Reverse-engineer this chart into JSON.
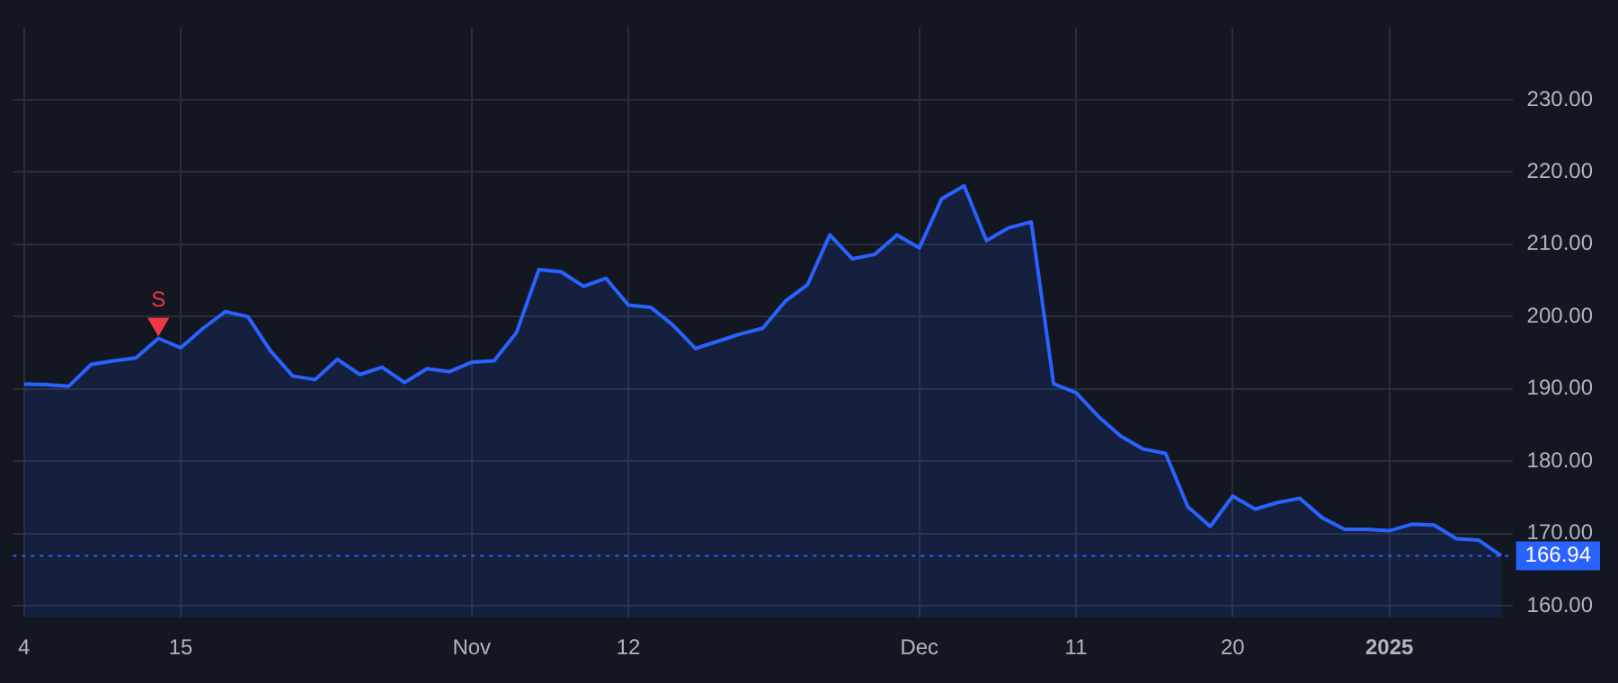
{
  "chart_data": {
    "type": "area",
    "categories": [
      "4",
      null,
      null,
      null,
      null,
      null,
      null,
      "15",
      null,
      null,
      null,
      null,
      null,
      null,
      null,
      null,
      null,
      null,
      null,
      null,
      "Nov",
      null,
      null,
      null,
      null,
      null,
      null,
      "12",
      null,
      null,
      null,
      null,
      null,
      null,
      null,
      null,
      null,
      null,
      null,
      null,
      "Dec",
      null,
      null,
      null,
      null,
      null,
      null,
      "11",
      null,
      null,
      null,
      null,
      null,
      null,
      "20",
      null,
      null,
      null,
      null,
      null,
      null,
      "2025",
      null,
      null,
      null,
      null,
      null
    ],
    "series": [
      {
        "color": "#2962ff",
        "values": [
          190.7,
          190.6,
          190.4,
          193.4,
          193.9,
          194.3,
          197.0,
          195.7,
          198.4,
          200.7,
          200.0,
          195.3,
          191.8,
          191.3,
          194.1,
          192.0,
          193.0,
          190.9,
          192.8,
          192.4,
          193.7,
          193.9,
          197.8,
          206.5,
          206.2,
          204.2,
          205.3,
          201.6,
          201.3,
          198.8,
          195.6,
          196.6,
          197.6,
          198.4,
          202.1,
          204.4,
          211.3,
          208.0,
          208.6,
          211.3,
          209.5,
          216.3,
          218.1,
          210.5,
          212.3,
          213.1,
          190.7,
          189.5,
          186.2,
          183.5,
          181.7,
          181.1,
          173.7,
          171.0,
          175.2,
          173.4,
          174.3,
          174.9,
          172.2,
          170.6,
          170.6,
          170.4,
          171.3,
          171.2,
          169.3,
          169.1,
          166.94
        ]
      },
      {
        "type": "scatter",
        "name": "S",
        "color": "#f23645",
        "marker": "triangle",
        "values": [
          null,
          null,
          null,
          null,
          null,
          null,
          199.0,
          null,
          null,
          null,
          null,
          null,
          null,
          null,
          null,
          null,
          null,
          null,
          null,
          null,
          null,
          null,
          null,
          null,
          null,
          null,
          null,
          null,
          null,
          null,
          null,
          null,
          null,
          null,
          null,
          null,
          null,
          null,
          null,
          null,
          null,
          null,
          null,
          null,
          null,
          null,
          null,
          null,
          null,
          null,
          null,
          null,
          null,
          null,
          null,
          null,
          null,
          null,
          null,
          null,
          null,
          null,
          null,
          null,
          null,
          null,
          null
        ]
      }
    ],
    "ylim": [
      158.4,
      240
    ],
    "yticks": [
      {
        "value": 160,
        "label": "160.00"
      },
      {
        "value": 170,
        "label": "170.00"
      },
      {
        "value": 180,
        "label": "180.00"
      },
      {
        "value": 190,
        "label": "190.00"
      },
      {
        "value": 200,
        "label": "200.00"
      },
      {
        "value": 210,
        "label": "210.00"
      },
      {
        "value": 220,
        "label": "220.00"
      },
      {
        "value": 230,
        "label": "230.00"
      }
    ],
    "grid": true,
    "legend": false,
    "marker": "none",
    "line_style": "solid",
    "ref_lines": [
      {
        "axis": "y",
        "value": 166.94,
        "label": "166.94",
        "color": "#2962ff",
        "line_style": "dotted"
      }
    ]
  }
}
